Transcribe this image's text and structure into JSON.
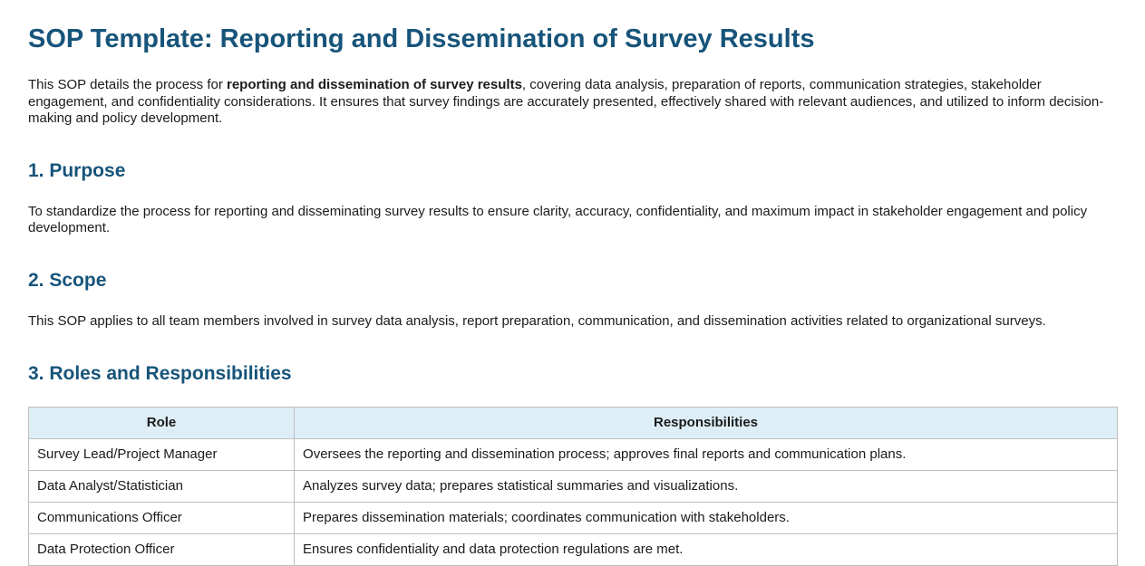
{
  "page": {
    "title": "SOP Template: Reporting and Dissemination of Survey Results"
  },
  "intro": {
    "before_bold": "This SOP details the process for ",
    "bold": "reporting and dissemination of survey results",
    "after_bold": ", covering data analysis, preparation of reports, communication strategies, stakeholder engagement, and confidentiality considerations. It ensures that survey findings are accurately presented, effectively shared with relevant audiences, and utilized to inform decision-making and policy development."
  },
  "sections": {
    "purpose": {
      "heading": "1. Purpose",
      "body": "To standardize the process for reporting and disseminating survey results to ensure clarity, accuracy, confidentiality, and maximum impact in stakeholder engagement and policy development."
    },
    "scope": {
      "heading": "2. Scope",
      "body": "This SOP applies to all team members involved in survey data analysis, report preparation, communication, and dissemination activities related to organizational surveys."
    },
    "roles": {
      "heading": "3. Roles and Responsibilities"
    }
  },
  "roles_table": {
    "headers": [
      "Role",
      "Responsibilities"
    ],
    "rows": [
      {
        "role": "Survey Lead/Project Manager",
        "responsibilities": "Oversees the reporting and dissemination process; approves final reports and communication plans."
      },
      {
        "role": "Data Analyst/Statistician",
        "responsibilities": "Analyzes survey data; prepares statistical summaries and visualizations."
      },
      {
        "role": "Communications Officer",
        "responsibilities": "Prepares dissemination materials; coordinates communication with stakeholders."
      },
      {
        "role": "Data Protection Officer",
        "responsibilities": "Ensures confidentiality and data protection regulations are met."
      }
    ]
  },
  "colors": {
    "heading_text": "#17547a",
    "table_header_bg": "#ddeef7",
    "table_border": "#bfbfbf",
    "body_text": "#1b1b1b"
  }
}
